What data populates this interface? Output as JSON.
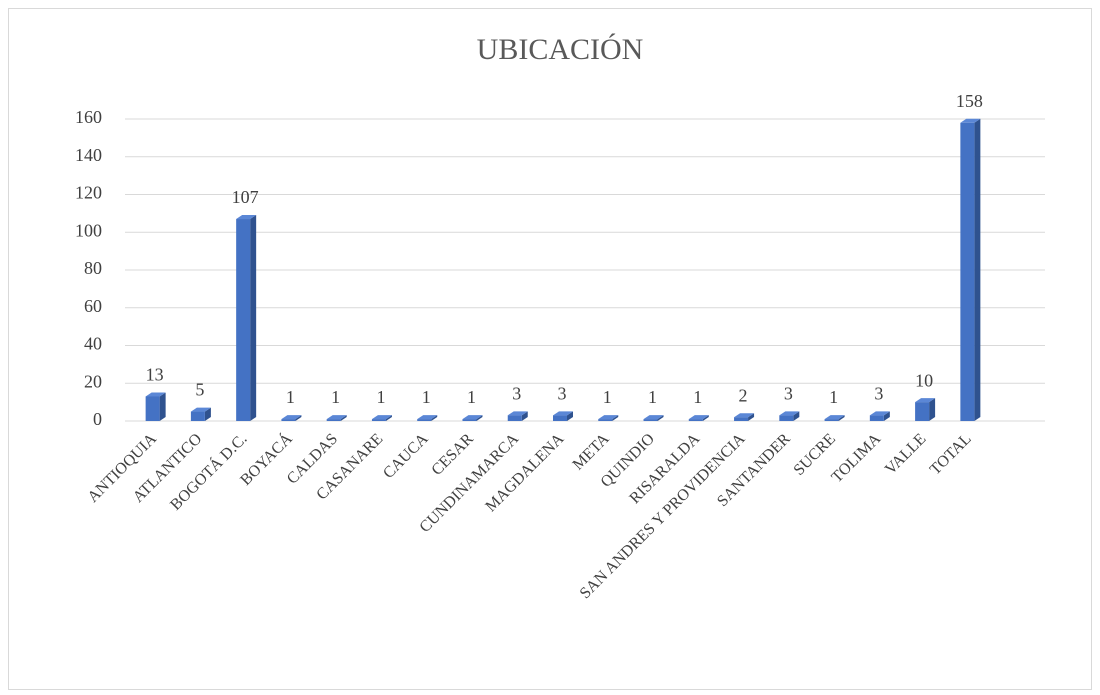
{
  "chart_data": {
    "type": "bar",
    "title": "UBICACIÓN",
    "categories": [
      "ANTIOQUIA",
      "ATLANTICO",
      "BOGOTÁ D.C.",
      "BOYACÁ",
      "CALDAS",
      "CASANARE",
      "CAUCA",
      "CESAR",
      "CUNDINAMARCA",
      "MAGDALENA",
      "META",
      "QUINDIO",
      "RISARALDA",
      "SAN ANDRES Y PROVIDENCIA",
      "SANTANDER",
      "SUCRE",
      "TOLIMA",
      "VALLE",
      "TOTAL"
    ],
    "values": [
      13,
      5,
      107,
      1,
      1,
      1,
      1,
      1,
      3,
      3,
      1,
      1,
      1,
      2,
      3,
      1,
      3,
      10,
      158
    ],
    "color": "#4472c4",
    "ylim": [
      0,
      160
    ],
    "yticks": [
      0,
      20,
      40,
      60,
      80,
      100,
      120,
      140,
      160
    ],
    "grid": true
  }
}
